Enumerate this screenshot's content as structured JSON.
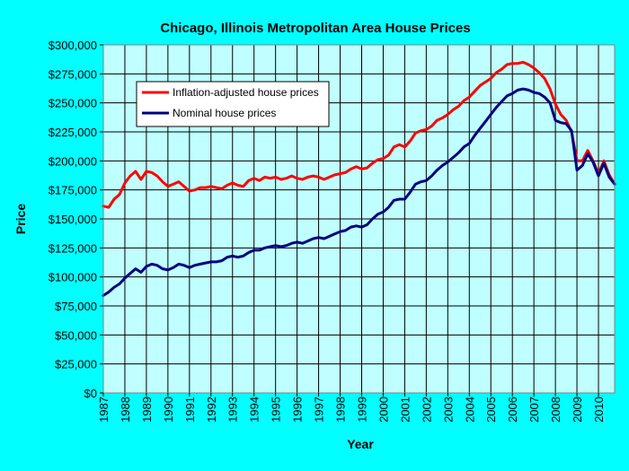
{
  "colors": {
    "page_background": "#00FFFF",
    "plot_background": "#BFFFFF",
    "grid": "#000000",
    "inflation_series": "#FF0000",
    "nominal_series": "#000080"
  },
  "chart_data": {
    "type": "line",
    "title": "Chicago, Illinois Metropolitan Area House Prices",
    "xlabel": "Year",
    "ylabel": "Price",
    "xlim": [
      1987,
      2010.75
    ],
    "ylim": [
      0,
      300000
    ],
    "grid": true,
    "legend_position": "top-left",
    "x_ticks": [
      "1987",
      "1988",
      "1989",
      "1990",
      "1991",
      "1992",
      "1993",
      "1994",
      "1995",
      "1996",
      "1997",
      "1998",
      "1999",
      "2000",
      "2001",
      "2002",
      "2003",
      "2004",
      "2005",
      "2006",
      "2007",
      "2008",
      "2009",
      "2010"
    ],
    "y_ticks": [
      "$0",
      "$25,000",
      "$50,000",
      "$75,000",
      "$100,000",
      "$125,000",
      "$150,000",
      "$175,000",
      "$200,000",
      "$225,000",
      "$250,000",
      "$275,000",
      "$300,000"
    ],
    "y_tick_values": [
      0,
      25000,
      50000,
      75000,
      100000,
      125000,
      150000,
      175000,
      200000,
      225000,
      250000,
      275000,
      300000
    ],
    "series": [
      {
        "name": "Inflation-adjusted house prices",
        "color": "#FF0000",
        "x": [
          1987.0,
          1987.25,
          1987.5,
          1987.75,
          1988.0,
          1988.25,
          1988.5,
          1988.75,
          1989.0,
          1989.25,
          1989.5,
          1989.75,
          1990.0,
          1990.25,
          1990.5,
          1990.75,
          1991.0,
          1991.25,
          1991.5,
          1991.75,
          1992.0,
          1992.25,
          1992.5,
          1992.75,
          1993.0,
          1993.25,
          1993.5,
          1993.75,
          1994.0,
          1994.25,
          1994.5,
          1994.75,
          1995.0,
          1995.25,
          1995.5,
          1995.75,
          1996.0,
          1996.25,
          1996.5,
          1996.75,
          1997.0,
          1997.25,
          1997.5,
          1997.75,
          1998.0,
          1998.25,
          1998.5,
          1998.75,
          1999.0,
          1999.25,
          1999.5,
          1999.75,
          2000.0,
          2000.25,
          2000.5,
          2000.75,
          2001.0,
          2001.25,
          2001.5,
          2001.75,
          2002.0,
          2002.25,
          2002.5,
          2002.75,
          2003.0,
          2003.25,
          2003.5,
          2003.75,
          2004.0,
          2004.25,
          2004.5,
          2004.75,
          2005.0,
          2005.25,
          2005.5,
          2005.75,
          2006.0,
          2006.25,
          2006.5,
          2006.75,
          2007.0,
          2007.25,
          2007.5,
          2007.75,
          2008.0,
          2008.25,
          2008.5,
          2008.75,
          2009.0,
          2009.25,
          2009.5,
          2009.75,
          2010.0,
          2010.25,
          2010.5,
          2010.75
        ],
        "y": [
          161000,
          160000,
          167000,
          171000,
          181000,
          187000,
          191000,
          184000,
          191000,
          190000,
          187000,
          182000,
          178000,
          180000,
          182000,
          178000,
          174000,
          175000,
          177000,
          177000,
          178000,
          177000,
          176000,
          179000,
          181000,
          179000,
          178000,
          183000,
          185000,
          183000,
          186000,
          185000,
          186000,
          184000,
          185000,
          187000,
          185000,
          184000,
          186000,
          187000,
          186000,
          184000,
          186000,
          188000,
          189000,
          190000,
          193000,
          195000,
          193000,
          194000,
          198000,
          201000,
          202000,
          205000,
          212000,
          214000,
          212000,
          217000,
          224000,
          226000,
          227000,
          230000,
          235000,
          237000,
          240000,
          244000,
          247000,
          252000,
          255000,
          260000,
          265000,
          268000,
          271000,
          276000,
          279000,
          283000,
          284000,
          284000,
          285000,
          283000,
          280000,
          276000,
          271000,
          262000,
          249000,
          240000,
          235000,
          225000,
          200000,
          200000,
          209000,
          200000,
          189000,
          200000,
          188000,
          180000
        ]
      },
      {
        "name": "Nominal house prices",
        "color": "#000080",
        "x": [
          1987.0,
          1987.25,
          1987.5,
          1987.75,
          1988.0,
          1988.25,
          1988.5,
          1988.75,
          1989.0,
          1989.25,
          1989.5,
          1989.75,
          1990.0,
          1990.25,
          1990.5,
          1990.75,
          1991.0,
          1991.25,
          1991.5,
          1991.75,
          1992.0,
          1992.25,
          1992.5,
          1992.75,
          1993.0,
          1993.25,
          1993.5,
          1993.75,
          1994.0,
          1994.25,
          1994.5,
          1994.75,
          1995.0,
          1995.25,
          1995.5,
          1995.75,
          1996.0,
          1996.25,
          1996.5,
          1996.75,
          1997.0,
          1997.25,
          1997.5,
          1997.75,
          1998.0,
          1998.25,
          1998.5,
          1998.75,
          1999.0,
          1999.25,
          1999.5,
          1999.75,
          2000.0,
          2000.25,
          2000.5,
          2000.75,
          2001.0,
          2001.25,
          2001.5,
          2001.75,
          2002.0,
          2002.25,
          2002.5,
          2002.75,
          2003.0,
          2003.25,
          2003.5,
          2003.75,
          2004.0,
          2004.25,
          2004.5,
          2004.75,
          2005.0,
          2005.25,
          2005.5,
          2005.75,
          2006.0,
          2006.25,
          2006.5,
          2006.75,
          2007.0,
          2007.25,
          2007.5,
          2007.75,
          2008.0,
          2008.25,
          2008.5,
          2008.75,
          2009.0,
          2009.25,
          2009.5,
          2009.75,
          2010.0,
          2010.25,
          2010.5,
          2010.75
        ],
        "y": [
          84000,
          87000,
          91000,
          94000,
          99000,
          103000,
          107000,
          104000,
          109000,
          111000,
          110000,
          107000,
          106000,
          108000,
          111000,
          110000,
          108000,
          110000,
          111000,
          112000,
          113000,
          113000,
          114000,
          117000,
          118000,
          117000,
          118000,
          121000,
          123000,
          123000,
          125000,
          126000,
          127000,
          126000,
          127000,
          129000,
          130000,
          129000,
          131000,
          133000,
          134000,
          133000,
          135000,
          137000,
          139000,
          140000,
          143000,
          144000,
          143000,
          145000,
          150000,
          154000,
          156000,
          160000,
          166000,
          167000,
          167000,
          173000,
          180000,
          182000,
          183000,
          187000,
          192000,
          196000,
          199000,
          203000,
          207000,
          212000,
          215000,
          222000,
          228000,
          234000,
          240000,
          246000,
          251000,
          256000,
          258000,
          261000,
          262000,
          261000,
          259000,
          258000,
          255000,
          250000,
          235000,
          233000,
          232000,
          226000,
          192000,
          196000,
          206000,
          199000,
          187000,
          198000,
          186000,
          180000
        ]
      }
    ]
  }
}
